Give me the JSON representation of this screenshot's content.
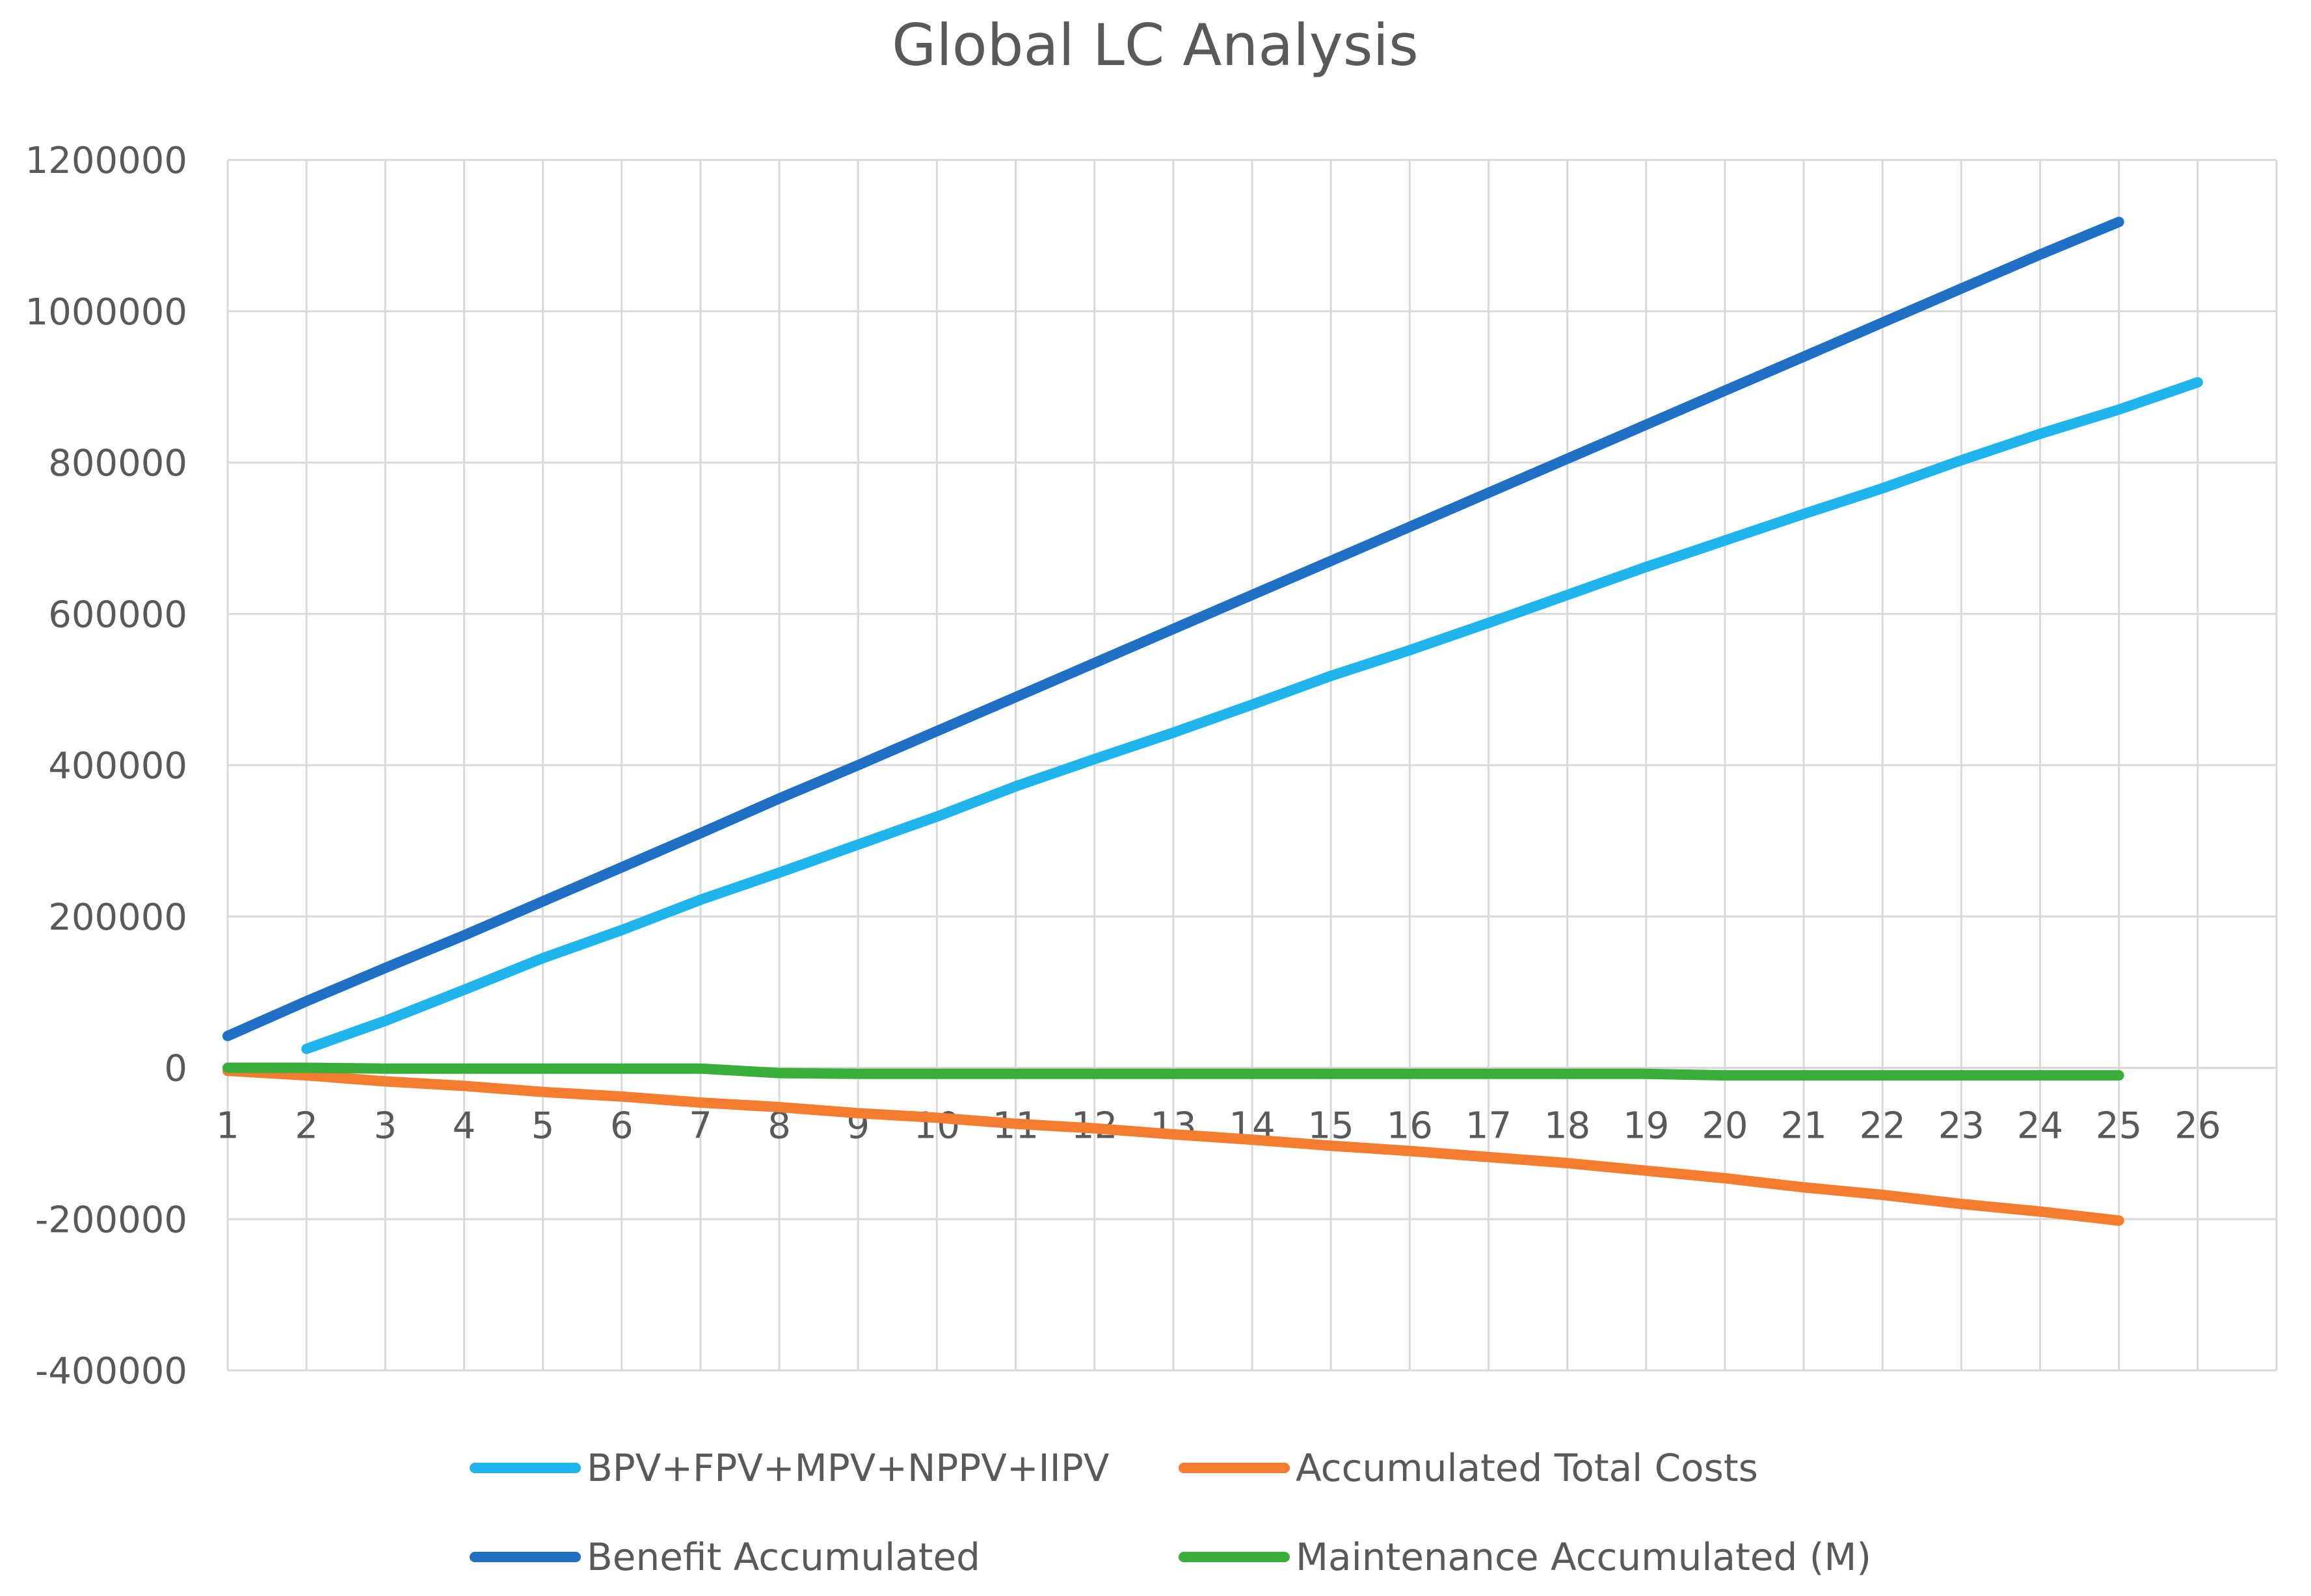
{
  "chart_data": {
    "type": "line",
    "title": "Global LC Analysis",
    "xlabel": "",
    "ylabel": "",
    "categories": [
      "1",
      "2",
      "3",
      "4",
      "5",
      "6",
      "7",
      "8",
      "9",
      "10",
      "11",
      "12",
      "13",
      "14",
      "15",
      "16",
      "17",
      "18",
      "19",
      "20",
      "21",
      "22",
      "23",
      "24",
      "25",
      "26"
    ],
    "ylim": [
      -400000,
      1200000
    ],
    "yticks": [
      1200000,
      1000000,
      800000,
      600000,
      400000,
      200000,
      0,
      -200000,
      -400000
    ],
    "ytick_labels": [
      "1200000",
      "1000000",
      "800000",
      "600000",
      "400000",
      "200000",
      "0",
      "-200000",
      "-400000"
    ],
    "grid": true,
    "legend_position": "bottom",
    "series": [
      {
        "name": "BPV+FPV+MPV+NPPV+IIPV",
        "color": "#1fb4ec",
        "start_index": 1,
        "values": [
          null,
          25000,
          62000,
          103000,
          145000,
          182000,
          222000,
          258000,
          295000,
          332000,
          372000,
          408000,
          443000,
          480000,
          518000,
          552000,
          588000,
          625000,
          662000,
          697000,
          732000,
          766000,
          803000,
          838000,
          870000,
          906000
        ]
      },
      {
        "name": "Benefit Accumulated",
        "color": "#1f6fc5",
        "values": [
          42000,
          88000,
          132000,
          175000,
          220000,
          265000,
          310000,
          356000,
          400000,
          445000,
          490000,
          535000,
          580000,
          625000,
          670000,
          715000,
          760000,
          805000,
          850000,
          895000,
          940000,
          985000,
          1030000,
          1075000,
          1118000,
          null
        ]
      },
      {
        "name": "Accumulated Total Costs",
        "color": "#f47c2e",
        "values": [
          -4000,
          -10000,
          -18000,
          -24000,
          -32000,
          -38000,
          -46000,
          -52000,
          -60000,
          -66000,
          -74000,
          -80000,
          -88000,
          -95000,
          -103000,
          -110000,
          -118000,
          -126000,
          -136000,
          -146000,
          -158000,
          -168000,
          -180000,
          -190000,
          -202000,
          null
        ]
      },
      {
        "name": "Maintenance Accumulated (M)",
        "color": "#3aae3a",
        "values": [
          0,
          0,
          -1000,
          -1000,
          -1000,
          -1000,
          -1000,
          -7000,
          -8000,
          -8000,
          -8000,
          -8000,
          -8000,
          -8000,
          -8000,
          -8000,
          -8000,
          -8000,
          -8000,
          -10000,
          -10000,
          -10000,
          -10000,
          -10000,
          -10000,
          null
        ]
      }
    ],
    "legend_rows": [
      [
        "BPV+FPV+MPV+NPPV+IIPV",
        "Accumulated Total Costs"
      ],
      [
        "Benefit Accumulated",
        "Maintenance Accumulated (M)"
      ]
    ]
  }
}
